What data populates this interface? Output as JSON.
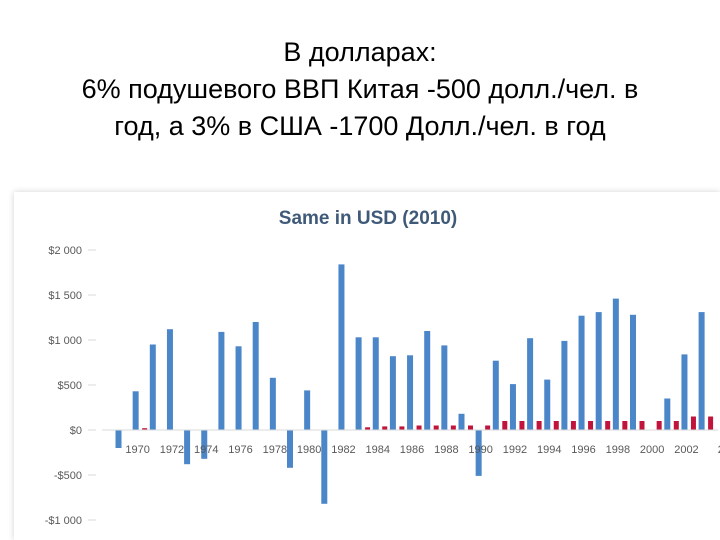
{
  "slide": {
    "title_lines": [
      "В долларах:",
      "6% подушевого ВВП Китая -500 долл./чел. в",
      "год, а 3% в США -1700 Долл./чел. в год"
    ]
  },
  "colors": {
    "series_blue": "#4a86c8",
    "series_red": "#c0143c",
    "axis_line": "#d9d9d9",
    "tick_text": "#595959",
    "chart_title": "#3f5a78"
  },
  "chart_data": {
    "type": "bar",
    "title": "Same in USD (2010)",
    "xlabel": "",
    "ylabel": "",
    "ylim": [
      -1000,
      2000
    ],
    "grid": false,
    "legend": "none",
    "ytick_labels": [
      "$2 000",
      "$1 500",
      "$1 000",
      "$500",
      "$0",
      "-$500",
      "-$1 000"
    ],
    "ytick_values": [
      2000,
      1500,
      1000,
      500,
      0,
      -500,
      -1000
    ],
    "xtick_labels": [
      "1970",
      "1972",
      "1974",
      "1976",
      "1978",
      "1980",
      "1982",
      "1984",
      "1986",
      "1988",
      "1990",
      "1992",
      "1994",
      "1996",
      "1998",
      "2000",
      "2002",
      "2"
    ],
    "categories": [
      1969,
      1970,
      1971,
      1972,
      1973,
      1974,
      1975,
      1976,
      1977,
      1978,
      1979,
      1980,
      1981,
      1982,
      1983,
      1984,
      1985,
      1986,
      1987,
      1988,
      1989,
      1990,
      1991,
      1992,
      1993,
      1994,
      1995,
      1996,
      1997,
      1998,
      1999,
      2000,
      2001,
      2002,
      2003
    ],
    "series": [
      {
        "values": [
          -200,
          430,
          950,
          1120,
          -380,
          -320,
          1090,
          930,
          1200,
          580,
          -420,
          440,
          -820,
          1840,
          1030,
          1030,
          820,
          830,
          1100,
          940,
          180,
          -510,
          770,
          510,
          1020,
          560,
          990,
          1270,
          1310,
          1460,
          1280,
          0,
          350,
          840,
          1310
        ]
      },
      {
        "values": [
          0,
          20,
          0,
          0,
          0,
          0,
          0,
          0,
          0,
          0,
          0,
          0,
          0,
          0,
          30,
          40,
          40,
          50,
          50,
          50,
          50,
          50,
          100,
          100,
          100,
          100,
          100,
          100,
          100,
          100,
          100,
          100,
          100,
          150,
          150
        ]
      }
    ]
  }
}
